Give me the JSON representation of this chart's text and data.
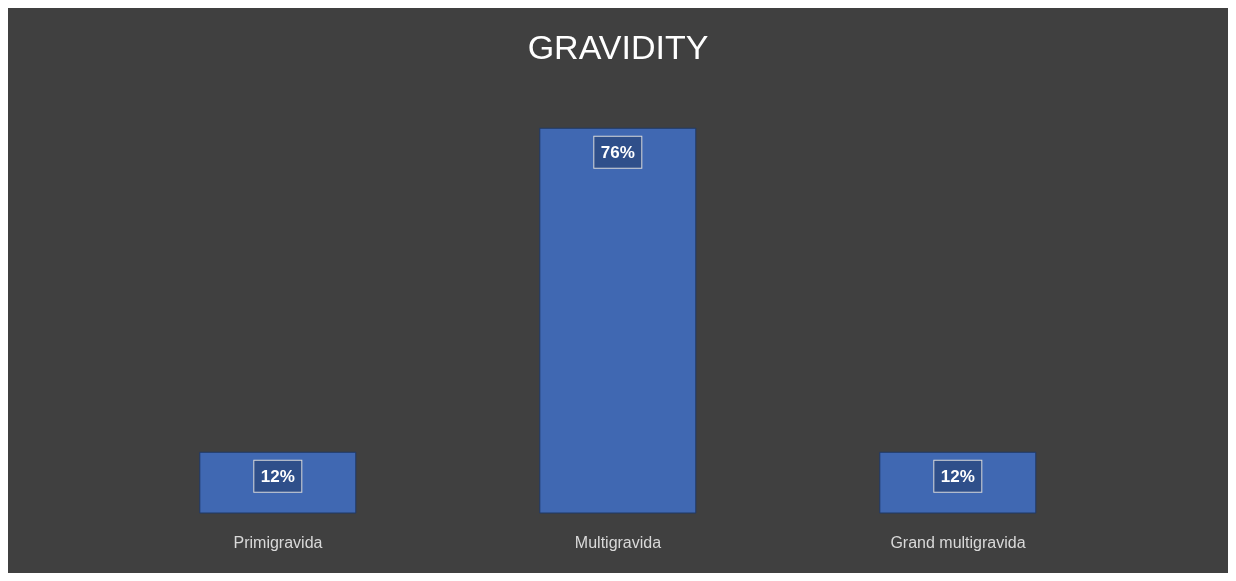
{
  "chart_data": {
    "type": "bar",
    "title": "GRAVIDITY",
    "categories": [
      "Primigravida",
      "Multigravida",
      "Grand multigravida"
    ],
    "values": [
      12,
      76,
      12
    ],
    "value_labels": [
      "12%",
      "76%",
      "12%"
    ],
    "color": "#4068b2"
  }
}
